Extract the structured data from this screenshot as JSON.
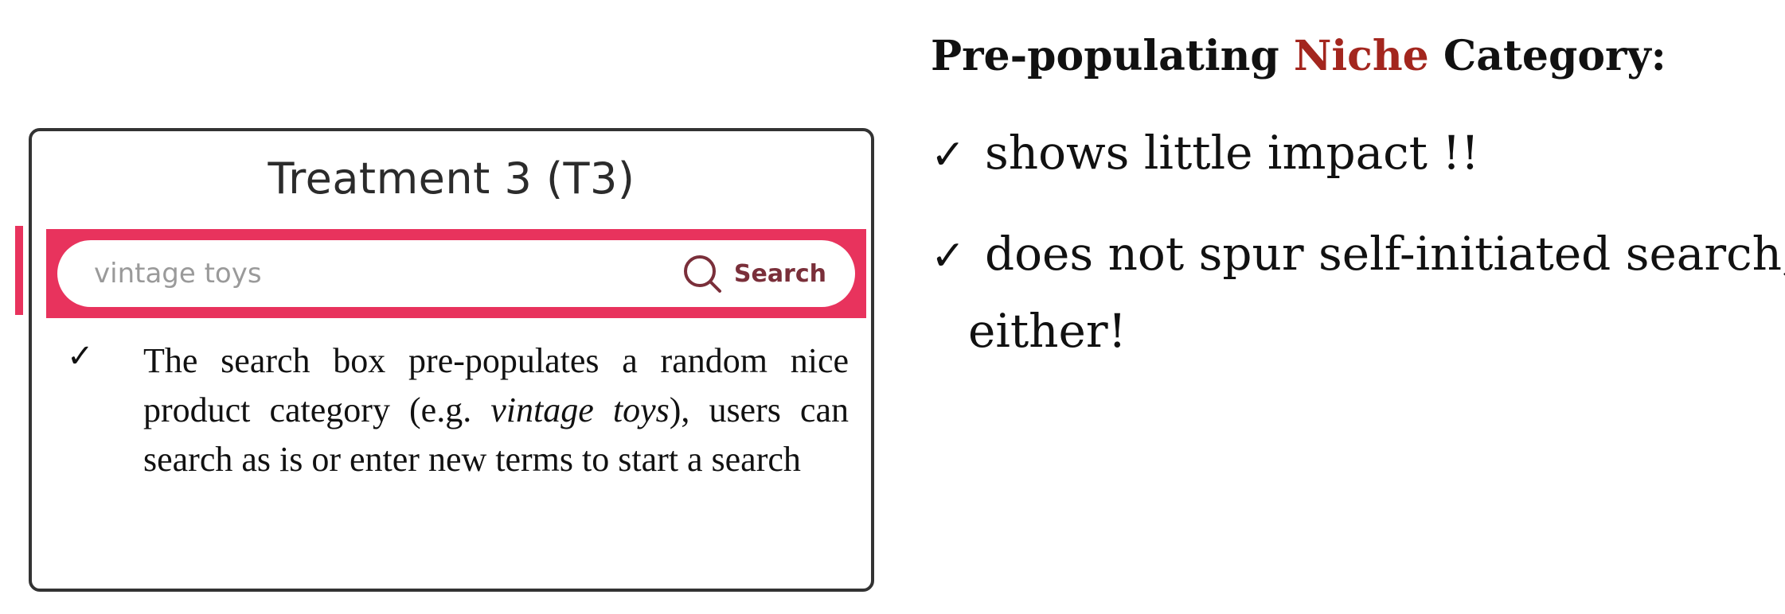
{
  "mockup": {
    "title": "Treatment 3 (T3)",
    "search": {
      "value": "vintage toys",
      "button_label": "Search",
      "band_color": "#e8335d"
    },
    "note": {
      "check": "✓",
      "text_before": "The search box pre-populates a random nice product category (e.g. ",
      "text_italic": "vintage toys",
      "text_after": "), users can search as is or enter new terms to start a search"
    }
  },
  "slide": {
    "heading": {
      "prefix": "Pre-populating ",
      "accent": "Niche",
      "suffix": " Category:",
      "accent_color": "#a3261e"
    },
    "bullets": [
      {
        "tick": "✓",
        "text": "shows little impact !!"
      },
      {
        "tick": "✓",
        "text": "does not spur self-initiated search,",
        "continuation": "either!"
      }
    ]
  }
}
